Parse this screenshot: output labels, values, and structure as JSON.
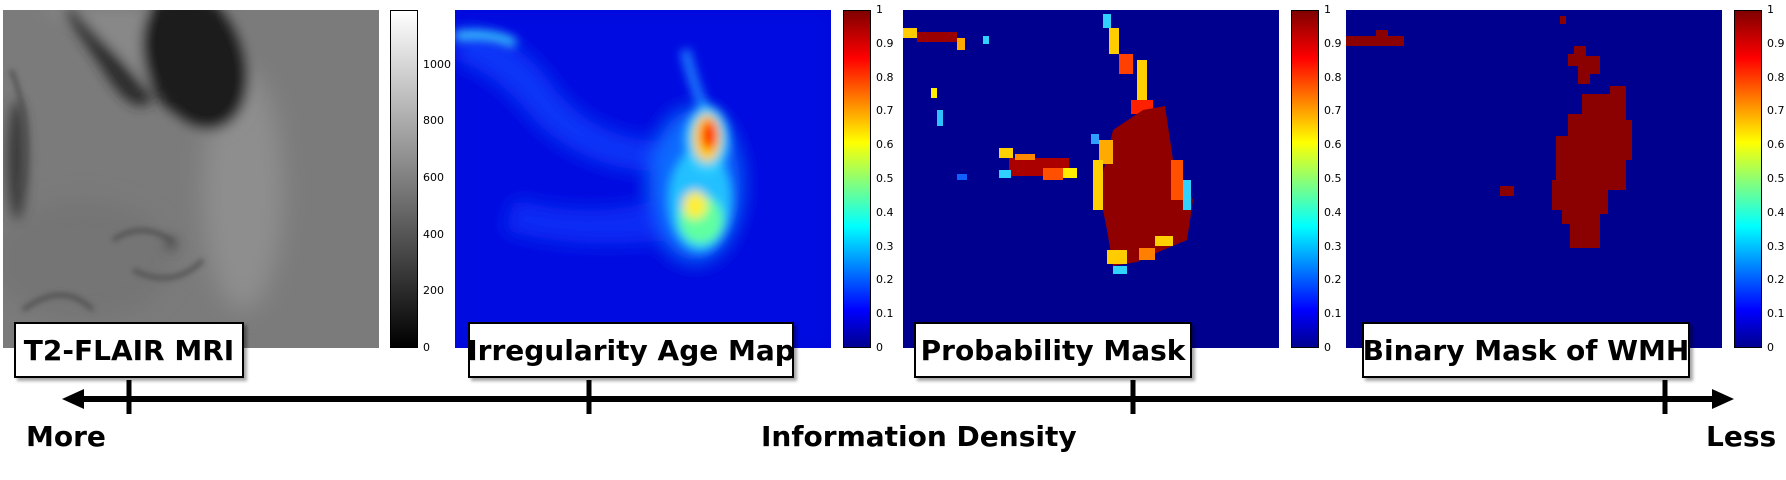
{
  "panels": [
    {
      "label": "T2-FLAIR MRI",
      "colormap": "gray",
      "colorbar_ticks": [
        "1000",
        "800",
        "600",
        "400",
        "200",
        "0"
      ]
    },
    {
      "label": "Irregularity Age Map",
      "colormap": "jet",
      "colorbar_ticks": [
        "1",
        "0.9",
        "0.8",
        "0.7",
        "0.6",
        "0.5",
        "0.4",
        "0.3",
        "0.2",
        "0.1",
        "0"
      ]
    },
    {
      "label": "Probability Mask",
      "colormap": "jet",
      "colorbar_ticks": [
        "1",
        "0.9",
        "0.8",
        "0.7",
        "0.6",
        "0.5",
        "0.4",
        "0.3",
        "0.2",
        "0.1",
        "0"
      ]
    },
    {
      "label": "Binary Mask of WMH",
      "colormap": "jet",
      "colorbar_ticks": [
        "1",
        "0.9",
        "0.8",
        "0.7",
        "0.6",
        "0.5",
        "0.4",
        "0.3",
        "0.2",
        "0.1",
        "0"
      ]
    }
  ],
  "axis": {
    "left_label": "More",
    "center_label": "Information Density",
    "right_label": "Less"
  }
}
